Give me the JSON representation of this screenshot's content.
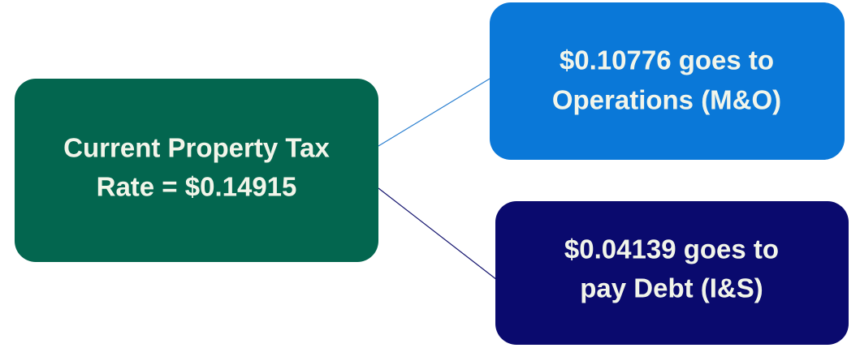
{
  "nodes": [
    {
      "label": [
        "Current Property Tax",
        "Rate = $0.14915"
      ]
    },
    {
      "label": [
        "$0.10776 goes to",
        "Operations (M&O)"
      ]
    },
    {
      "label": [
        "$0.04139 goes to",
        "pay Debt (I&S)"
      ]
    }
  ]
}
